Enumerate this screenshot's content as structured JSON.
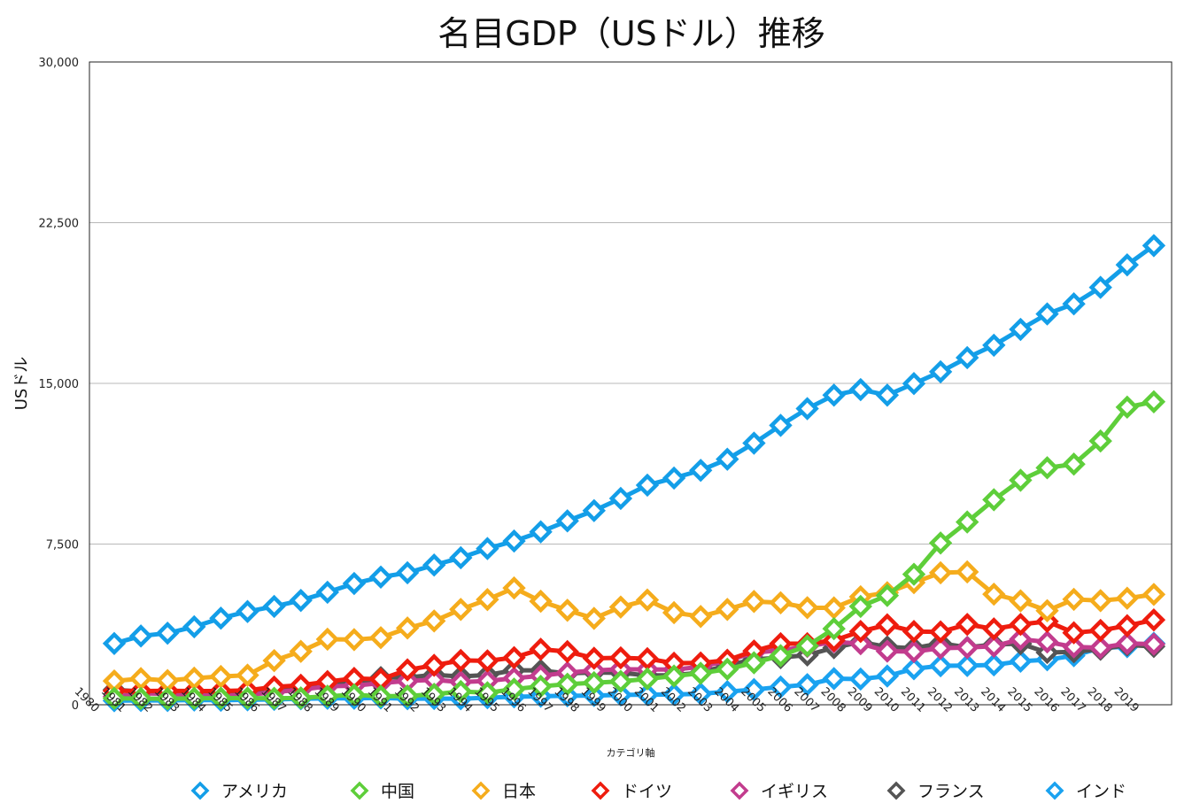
{
  "chart_data": {
    "type": "line",
    "title": "名目GDP（USドル）推移",
    "ylabel": "USドル",
    "xlabel": "カテゴリ軸",
    "ylim": [
      0,
      30000
    ],
    "yticks": [
      0,
      7500,
      15000,
      22500,
      30000
    ],
    "ytick_labels": [
      "0",
      "7,500",
      "15,000",
      "22,500",
      "30,000"
    ],
    "grid": true,
    "legend_position": "bottom",
    "categories": [
      "1980",
      "1981",
      "1982",
      "1983",
      "1984",
      "1985",
      "1986",
      "1987",
      "1988",
      "1989",
      "1990",
      "1991",
      "1992",
      "1993",
      "1994",
      "1995",
      "1996",
      "1997",
      "1998",
      "1999",
      "2000",
      "2001",
      "2002",
      "2003",
      "2004",
      "2005",
      "2006",
      "2007",
      "2008",
      "2009",
      "2010",
      "2011",
      "2012",
      "2013",
      "2014",
      "2015",
      "2016",
      "2017",
      "2018",
      "2019"
    ],
    "series": [
      {
        "name": "アメリカ",
        "color": "#139ee8",
        "values": [
          2860,
          3210,
          3340,
          3640,
          4040,
          4350,
          4590,
          4870,
          5250,
          5660,
          5960,
          6160,
          6520,
          6860,
          7290,
          7640,
          8070,
          8580,
          9060,
          9630,
          10250,
          10580,
          10940,
          11460,
          12210,
          13040,
          13820,
          14450,
          14710,
          14450,
          14990,
          15540,
          16200,
          16780,
          17520,
          18240,
          18710,
          19480,
          20530,
          21430
        ]
      },
      {
        "name": "中国",
        "color": "#5ece3a",
        "values": [
          300,
          290,
          280,
          300,
          310,
          310,
          300,
          320,
          400,
          460,
          400,
          410,
          490,
          620,
          560,
          730,
          860,
          960,
          1030,
          1090,
          1210,
          1340,
          1470,
          1660,
          1960,
          2290,
          2750,
          3550,
          4590,
          5100,
          6090,
          7550,
          8530,
          9570,
          10480,
          11060,
          11230,
          12310,
          13890,
          14140
        ]
      },
      {
        "name": "日本",
        "color": "#f5ac1c",
        "values": [
          1110,
          1220,
          1130,
          1240,
          1320,
          1380,
          2060,
          2490,
          3060,
          3040,
          3130,
          3580,
          3910,
          4450,
          4910,
          5450,
          4830,
          4410,
          4030,
          4560,
          4890,
          4300,
          4120,
          4450,
          4820,
          4760,
          4530,
          4520,
          5040,
          5230,
          5700,
          6160,
          6200,
          5160,
          4850,
          4390,
          4920,
          4860,
          4970,
          5150
        ]
      },
      {
        "name": "ドイツ",
        "color": "#ee1c0e",
        "values": [
          650,
          640,
          650,
          640,
          640,
          670,
          830,
          910,
          1080,
          1230,
          1190,
          1630,
          1840,
          2070,
          2050,
          2200,
          2590,
          2480,
          2170,
          2190,
          2150,
          1940,
          1950,
          2080,
          2510,
          2850,
          2850,
          3000,
          3420,
          3730,
          3420,
          3400,
          3750,
          3540,
          3750,
          3890,
          3360,
          3470,
          3690,
          3960
        ]
      },
      {
        "name": "イギリス",
        "color": "#c23c8e",
        "values": [
          380,
          530,
          510,
          470,
          430,
          460,
          590,
          700,
          860,
          890,
          1010,
          1110,
          1160,
          1060,
          1110,
          1240,
          1350,
          1500,
          1600,
          1660,
          1650,
          1640,
          1770,
          2060,
          2430,
          2540,
          2720,
          2940,
          2850,
          2500,
          2480,
          2640,
          2670,
          2730,
          3060,
          2930,
          2700,
          2660,
          2860,
          2830
        ]
      },
      {
        "name": "フランス",
        "color": "#545454",
        "values": [
          700,
          620,
          580,
          560,
          530,
          550,
          760,
          900,
          1000,
          1000,
          1270,
          1270,
          1400,
          1320,
          1390,
          1610,
          1600,
          1460,
          1510,
          1490,
          1370,
          1380,
          1500,
          1840,
          2120,
          2200,
          2320,
          2660,
          2930,
          2700,
          2640,
          2870,
          2680,
          2810,
          2850,
          2440,
          2470,
          2590,
          2790,
          2720
        ]
      },
      {
        "name": "インド",
        "color": "#1aa2f0",
        "values": [
          190,
          200,
          200,
          220,
          210,
          230,
          250,
          280,
          300,
          300,
          320,
          280,
          290,
          280,
          330,
          370,
          400,
          420,
          430,
          460,
          470,
          480,
          510,
          610,
          710,
          830,
          940,
          1220,
          1200,
          1340,
          1680,
          1820,
          1830,
          1860,
          2030,
          2100,
          2290,
          2650,
          2710,
          2870
        ]
      }
    ]
  }
}
